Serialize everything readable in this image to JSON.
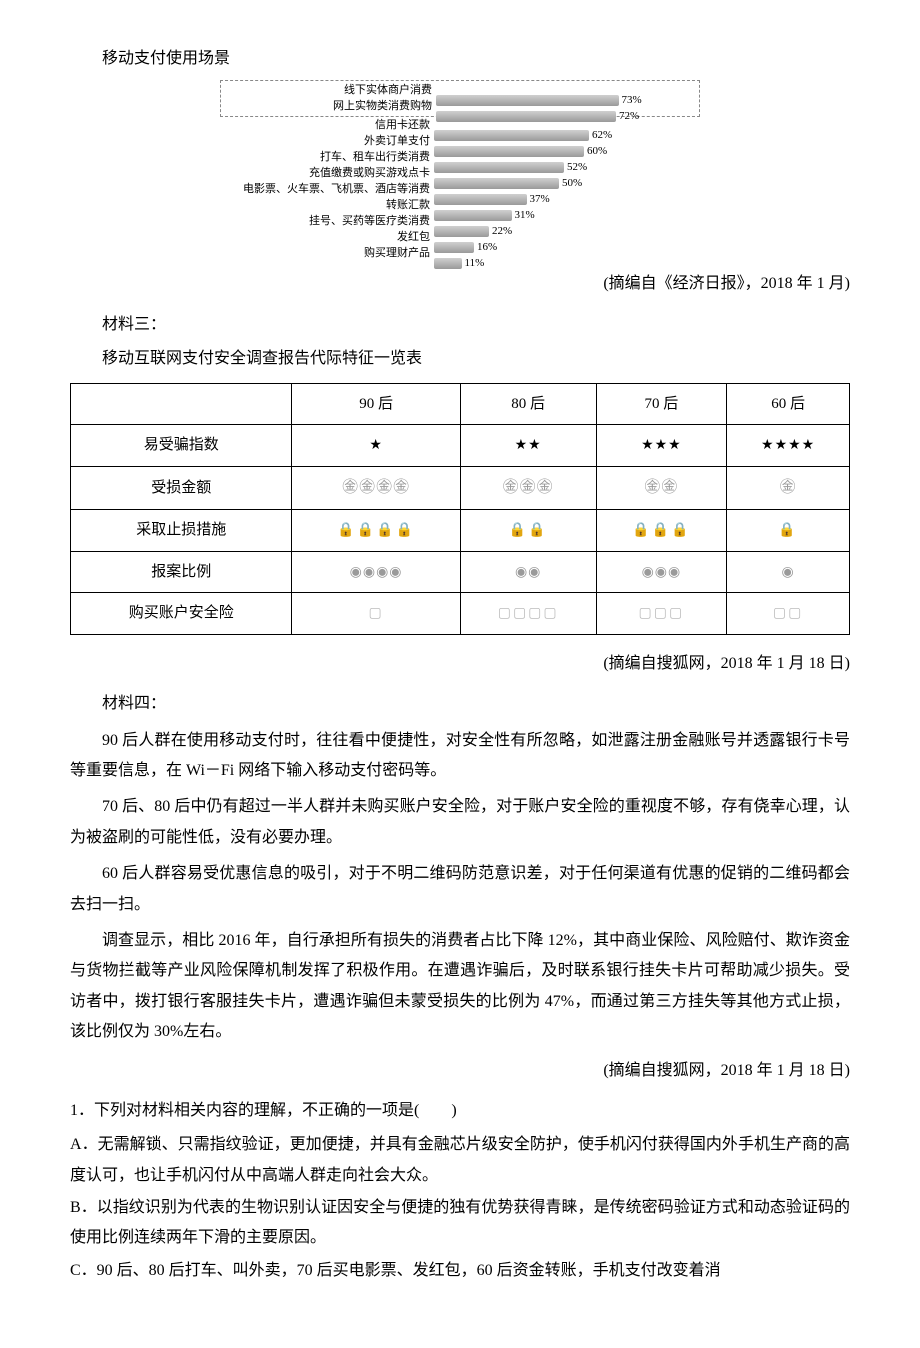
{
  "chart": {
    "title": "移动支付使用场景",
    "type": "bar",
    "bar_color": "#a8a8a8",
    "label_fontsize": 11,
    "value_fontsize": 11,
    "max_pct": 80,
    "items": [
      {
        "label": "线下实体商户消费",
        "value_pct": 73,
        "value_label": "73%",
        "highlight": true
      },
      {
        "label": "网上实物类消费购物",
        "value_pct": 72,
        "value_label": "72%",
        "highlight": true
      },
      {
        "label": "信用卡还款",
        "value_pct": 62,
        "value_label": "62%"
      },
      {
        "label": "外卖订单支付",
        "value_pct": 60,
        "value_label": "60%"
      },
      {
        "label": "打车、租车出行类消费",
        "value_pct": 52,
        "value_label": "52%"
      },
      {
        "label": "充值缴费或购买游戏点卡",
        "value_pct": 50,
        "value_label": "50%"
      },
      {
        "label": "电影票、火车票、飞机票、酒店等消费",
        "value_pct": 37,
        "value_label": "37%"
      },
      {
        "label": "转账汇款",
        "value_pct": 31,
        "value_label": "31%"
      },
      {
        "label": "挂号、买药等医疗类消费",
        "value_pct": 22,
        "value_label": "22%"
      },
      {
        "label": "发红包",
        "value_pct": 16,
        "value_label": "16%"
      },
      {
        "label": "购买理财产品",
        "value_pct": 11,
        "value_label": "11%"
      }
    ]
  },
  "chart_source": "(摘编自《经济日报》，2018 年 1 月)",
  "material3": {
    "heading": "材料三：",
    "table_title": "移动互联网支付安全调查报告代际特征一览表",
    "columns": [
      "",
      "90 后",
      "80 后",
      "70 后",
      "60 后"
    ],
    "rows": [
      {
        "label": "易受骗指数",
        "cells": [
          {
            "glyph": "★",
            "count": 1,
            "cls": "star"
          },
          {
            "glyph": "★",
            "count": 2,
            "cls": "star"
          },
          {
            "glyph": "★",
            "count": 3,
            "cls": "star"
          },
          {
            "glyph": "★",
            "count": 4,
            "cls": "star"
          }
        ]
      },
      {
        "label": "受损金额",
        "cells": [
          {
            "glyph": "㊎",
            "count": 4,
            "cls": "money"
          },
          {
            "glyph": "㊎",
            "count": 3,
            "cls": "money"
          },
          {
            "glyph": "㊎",
            "count": 2,
            "cls": "money"
          },
          {
            "glyph": "㊎",
            "count": 1,
            "cls": "money"
          }
        ]
      },
      {
        "label": "采取止损措施",
        "cells": [
          {
            "glyph": "🔒",
            "count": 4,
            "cls": "lock"
          },
          {
            "glyph": "🔒",
            "count": 2,
            "cls": "lock"
          },
          {
            "glyph": "🔒",
            "count": 3,
            "cls": "lock"
          },
          {
            "glyph": "🔒",
            "count": 1,
            "cls": "lock"
          }
        ]
      },
      {
        "label": "报案比例",
        "cells": [
          {
            "glyph": "◉",
            "count": 4,
            "cls": "report"
          },
          {
            "glyph": "◉",
            "count": 2,
            "cls": "report"
          },
          {
            "glyph": "◉",
            "count": 3,
            "cls": "report"
          },
          {
            "glyph": "◉",
            "count": 1,
            "cls": "report"
          }
        ]
      },
      {
        "label": "购买账户安全险",
        "cells": [
          {
            "glyph": "▢",
            "count": 1,
            "cls": "shield"
          },
          {
            "glyph": "▢",
            "count": 4,
            "cls": "shield"
          },
          {
            "glyph": "▢",
            "count": 3,
            "cls": "shield"
          },
          {
            "glyph": "▢",
            "count": 2,
            "cls": "shield"
          }
        ]
      }
    ],
    "source": "(摘编自搜狐网，2018 年 1 月 18 日)"
  },
  "material4": {
    "heading": "材料四：",
    "paras": [
      "90 后人群在使用移动支付时，往往看中便捷性，对安全性有所忽略，如泄露注册金融账号并透露银行卡号等重要信息，在 Wi－Fi 网络下输入移动支付密码等。",
      "70 后、80 后中仍有超过一半人群并未购买账户安全险，对于账户安全险的重视度不够，存有侥幸心理，认为被盗刷的可能性低，没有必要办理。",
      "60 后人群容易受优惠信息的吸引，对于不明二维码防范意识差，对于任何渠道有优惠的促销的二维码都会去扫一扫。",
      "调查显示，相比 2016 年，自行承担所有损失的消费者占比下降 12%，其中商业保险、风险赔付、欺诈资金与货物拦截等产业风险保障机制发挥了积极作用。在遭遇诈骗后，及时联系银行挂失卡片可帮助减少损失。受访者中，拨打银行客服挂失卡片，遭遇诈骗但未蒙受损失的比例为 47%，而通过第三方挂失等其他方式止损，该比例仅为 30%左右。"
    ],
    "source": "(摘编自搜狐网，2018 年 1 月 18 日)"
  },
  "question": {
    "stem": "1．下列对材料相关内容的理解，不正确的一项是(　　)",
    "options": [
      "A．无需解锁、只需指纹验证，更加便捷，并具有金融芯片级安全防护，使手机闪付获得国内外手机生产商的高度认可，也让手机闪付从中高端人群走向社会大众。",
      "B．以指纹识别为代表的生物识别认证因安全与便捷的独有优势获得青睐，是传统密码验证方式和动态验证码的使用比例连续两年下滑的主要原因。",
      "C．90 后、80 后打车、叫外卖，70 后买电影票、发红包，60 后资金转账，手机支付改变着消"
    ]
  }
}
